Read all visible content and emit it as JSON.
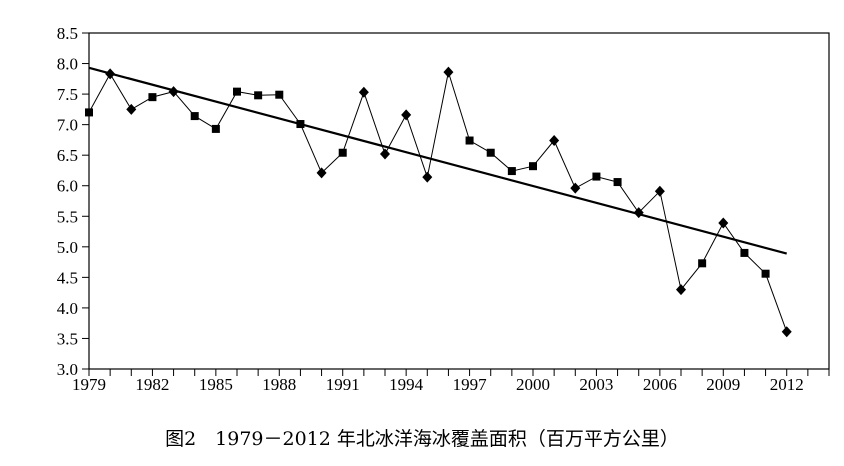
{
  "caption": "图2　1979－2012 年北冰洋海冰覆盖面积（百万平方公里）",
  "chart_data": {
    "type": "line",
    "title": "",
    "xlabel": "",
    "ylabel": "",
    "xlim": [
      1979,
      2014
    ],
    "ylim": [
      3.0,
      8.5
    ],
    "x_ticks": [
      1979,
      1982,
      1985,
      1988,
      1991,
      1994,
      1997,
      2000,
      2003,
      2006,
      2009,
      2012
    ],
    "y_ticks": [
      "3.0",
      "3.5",
      "4.0",
      "4.5",
      "5.0",
      "5.5",
      "6.0",
      "6.5",
      "7.0",
      "7.5",
      "8.0",
      "8.5"
    ],
    "grid": false,
    "legend": "none",
    "colors": {
      "series": "#000000",
      "trend": "#000000",
      "axis": "#000000"
    },
    "series": [
      {
        "marker_key": [
          "diamond",
          "square"
        ],
        "points": [
          {
            "x": 1979,
            "y": 7.2,
            "marker": "square"
          },
          {
            "x": 1980,
            "y": 7.83,
            "marker": "diamond"
          },
          {
            "x": 1981,
            "y": 7.25,
            "marker": "diamond"
          },
          {
            "x": 1982,
            "y": 7.45,
            "marker": "square"
          },
          {
            "x": 1983,
            "y": 7.54,
            "marker": "diamond"
          },
          {
            "x": 1984,
            "y": 7.14,
            "marker": "square"
          },
          {
            "x": 1985,
            "y": 6.93,
            "marker": "square"
          },
          {
            "x": 1986,
            "y": 7.54,
            "marker": "square"
          },
          {
            "x": 1987,
            "y": 7.48,
            "marker": "square"
          },
          {
            "x": 1988,
            "y": 7.49,
            "marker": "square"
          },
          {
            "x": 1989,
            "y": 7.01,
            "marker": "square"
          },
          {
            "x": 1990,
            "y": 6.21,
            "marker": "diamond"
          },
          {
            "x": 1991,
            "y": 6.54,
            "marker": "square"
          },
          {
            "x": 1992,
            "y": 7.53,
            "marker": "diamond"
          },
          {
            "x": 1993,
            "y": 6.52,
            "marker": "diamond"
          },
          {
            "x": 1994,
            "y": 7.16,
            "marker": "diamond"
          },
          {
            "x": 1995,
            "y": 6.14,
            "marker": "diamond"
          },
          {
            "x": 1996,
            "y": 7.86,
            "marker": "diamond"
          },
          {
            "x": 1997,
            "y": 6.74,
            "marker": "square"
          },
          {
            "x": 1998,
            "y": 6.54,
            "marker": "square"
          },
          {
            "x": 1999,
            "y": 6.24,
            "marker": "square"
          },
          {
            "x": 2000,
            "y": 6.32,
            "marker": "square"
          },
          {
            "x": 2001,
            "y": 6.74,
            "marker": "diamond"
          },
          {
            "x": 2002,
            "y": 5.96,
            "marker": "diamond"
          },
          {
            "x": 2003,
            "y": 6.15,
            "marker": "square"
          },
          {
            "x": 2004,
            "y": 6.06,
            "marker": "square"
          },
          {
            "x": 2005,
            "y": 5.56,
            "marker": "diamond"
          },
          {
            "x": 2006,
            "y": 5.91,
            "marker": "diamond"
          },
          {
            "x": 2007,
            "y": 4.3,
            "marker": "diamond"
          },
          {
            "x": 2008,
            "y": 4.73,
            "marker": "square"
          },
          {
            "x": 2009,
            "y": 5.39,
            "marker": "diamond"
          },
          {
            "x": 2010,
            "y": 4.9,
            "marker": "square"
          },
          {
            "x": 2011,
            "y": 4.56,
            "marker": "square"
          },
          {
            "x": 2012,
            "y": 3.61,
            "marker": "diamond"
          }
        ]
      }
    ],
    "trend_line": {
      "x": [
        1979,
        2012
      ],
      "y": [
        7.93,
        4.89
      ]
    }
  }
}
